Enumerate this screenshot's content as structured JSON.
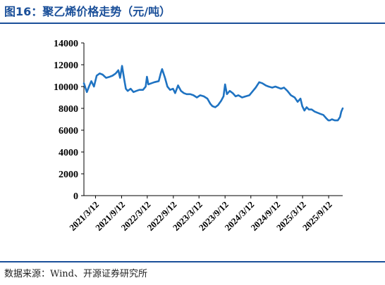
{
  "figure": {
    "title": "图16：聚乙烯价格走势（元/吨）",
    "source": "数据来源：Wind、开源证券研究所"
  },
  "colors": {
    "line": "#1f73c2",
    "accent": "#1a4f99",
    "axis": "#000000"
  },
  "chart_data": {
    "type": "line",
    "title": "",
    "xlabel": "",
    "ylabel": "",
    "ylim": [
      0,
      14000
    ],
    "yticks": [
      0,
      2000,
      4000,
      6000,
      8000,
      10000,
      12000,
      14000
    ],
    "xticks": [
      "2021/3/12",
      "2021/9/12",
      "2022/3/12",
      "2022/9/12",
      "2023/3/12",
      "2023/9/12",
      "2024/3/12",
      "2024/9/12",
      "2025/3/12",
      "2025/9/12"
    ],
    "grid": false,
    "legend": "none",
    "series": [
      {
        "x": [
          "2020/12/20",
          "2021/1/10",
          "2021/1/25",
          "2021/2/10",
          "2021/3/1",
          "2021/3/20",
          "2021/4/10",
          "2021/5/1",
          "2021/5/25",
          "2021/6/20",
          "2021/7/10",
          "2021/8/1",
          "2021/8/20",
          "2021/9/1",
          "2021/9/15",
          "2021/10/1",
          "2021/10/12",
          "2021/10/25",
          "2021/11/15",
          "2021/12/5",
          "2021/12/25",
          "2022/1/15",
          "2022/2/10",
          "2022/3/1",
          "2022/3/10",
          "2022/3/20",
          "2022/4/10",
          "2022/5/1",
          "2022/6/1",
          "2022/6/15",
          "2022/6/25",
          "2022/7/15",
          "2022/8/1",
          "2022/8/20",
          "2022/9/10",
          "2022/9/25",
          "2022/10/15",
          "2022/11/5",
          "2022/11/25",
          "2022/12/15",
          "2023/1/10",
          "2023/2/1",
          "2023/2/25",
          "2023/3/20",
          "2023/4/15",
          "2023/5/10",
          "2023/6/1",
          "2023/6/15",
          "2023/7/5",
          "2023/7/25",
          "2023/8/15",
          "2023/9/1",
          "2023/9/12",
          "2023/9/25",
          "2023/10/15",
          "2023/11/5",
          "2023/11/25",
          "2023/12/15",
          "2024/1/10",
          "2024/2/5",
          "2024/3/1",
          "2024/3/20",
          "2024/4/15",
          "2024/5/10",
          "2024/6/1",
          "2024/6/25",
          "2024/7/15",
          "2024/8/10",
          "2024/9/1",
          "2024/9/20",
          "2024/10/10",
          "2024/11/1",
          "2024/11/25",
          "2024/12/20",
          "2025/1/15",
          "2025/2/5",
          "2025/2/25",
          "2025/3/10",
          "2025/3/25",
          "2025/4/10",
          "2025/4/25",
          "2025/5/15",
          "2025/6/5",
          "2025/6/25",
          "2025/7/15",
          "2025/8/5",
          "2025/8/25",
          "2025/9/10",
          "2025/9/20",
          "2025/10/5",
          "2025/10/25",
          "2025/11/15",
          "2025/12/1",
          "2025/12/10",
          "2025/12/20"
        ],
        "y": [
          10300,
          9500,
          10000,
          10500,
          10000,
          11000,
          11200,
          11100,
          10800,
          10900,
          11000,
          11200,
          11500,
          10800,
          11900,
          10600,
          9800,
          9600,
          9800,
          9500,
          9600,
          9700,
          9700,
          10000,
          10900,
          10200,
          10300,
          10400,
          10500,
          11200,
          11600,
          10800,
          10000,
          9700,
          9800,
          9400,
          10100,
          9600,
          9400,
          9300,
          9300,
          9200,
          9000,
          9200,
          9100,
          8900,
          8400,
          8200,
          8100,
          8300,
          8700,
          9100,
          10200,
          9300,
          9600,
          9400,
          9100,
          9200,
          9000,
          9100,
          9200,
          9500,
          9900,
          10400,
          10300,
          10100,
          10000,
          9900,
          10000,
          9900,
          9800,
          9900,
          9600,
          9200,
          9000,
          8600,
          8900,
          8200,
          7800,
          8100,
          7900,
          7900,
          7700,
          7600,
          7500,
          7400,
          7100,
          6900,
          6900,
          7000,
          6900,
          6900,
          7200,
          7700,
          8000
        ]
      }
    ]
  }
}
